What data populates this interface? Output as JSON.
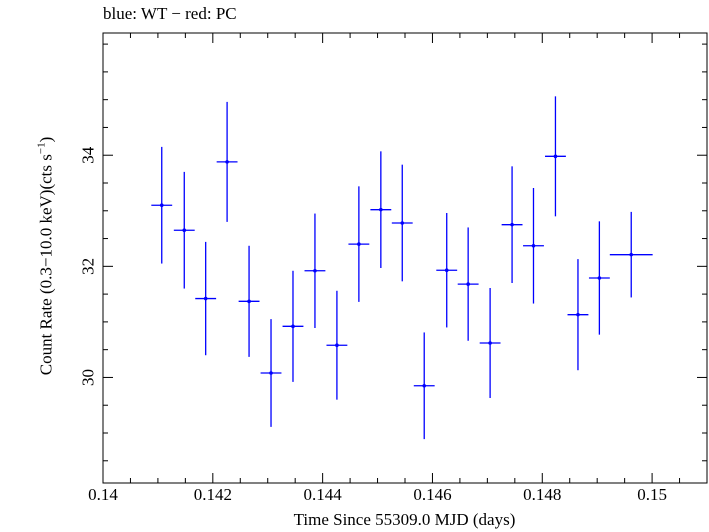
{
  "chart_data": {
    "type": "scatter",
    "title": "blue: WT − red: PC",
    "xlabel": "Time Since 55309.0 MJD (days)",
    "ylabel_main": "Count Rate (0.3−10.0 keV)(cts s",
    "ylabel_sup": "−1",
    "ylabel_end": ")",
    "xlim": [
      0.14,
      0.151
    ],
    "ylim": [
      28.1,
      36.2
    ],
    "x_ticks": [
      0.14,
      0.142,
      0.144,
      0.146,
      0.148,
      0.15
    ],
    "x_tick_labels": [
      "0.14",
      "0.142",
      "0.144",
      "0.146",
      "0.148",
      "0.15"
    ],
    "y_ticks": [
      30,
      32,
      34
    ],
    "y_tick_labels": [
      "30",
      "32",
      "34"
    ],
    "series": [
      {
        "color": "#0000ff",
        "points": [
          {
            "x": 0.14107,
            "xerr": 0.00019,
            "y": 33.1,
            "yerr": 1.05
          },
          {
            "x": 0.14148,
            "xerr": 0.00019,
            "y": 32.65,
            "yerr": 1.05
          },
          {
            "x": 0.14187,
            "xerr": 0.00019,
            "y": 31.42,
            "yerr": 1.02
          },
          {
            "x": 0.14226,
            "xerr": 0.00019,
            "y": 33.88,
            "yerr": 1.08
          },
          {
            "x": 0.14266,
            "xerr": 0.00019,
            "y": 31.37,
            "yerr": 1.0
          },
          {
            "x": 0.14306,
            "xerr": 0.00019,
            "y": 30.08,
            "yerr": 0.97
          },
          {
            "x": 0.14346,
            "xerr": 0.00019,
            "y": 30.92,
            "yerr": 1.0
          },
          {
            "x": 0.14386,
            "xerr": 0.00019,
            "y": 31.92,
            "yerr": 1.03
          },
          {
            "x": 0.14426,
            "xerr": 0.00019,
            "y": 30.58,
            "yerr": 0.98
          },
          {
            "x": 0.14466,
            "xerr": 0.00019,
            "y": 32.4,
            "yerr": 1.04
          },
          {
            "x": 0.14506,
            "xerr": 0.00019,
            "y": 33.02,
            "yerr": 1.05
          },
          {
            "x": 0.14545,
            "xerr": 0.00019,
            "y": 32.78,
            "yerr": 1.05
          },
          {
            "x": 0.14585,
            "xerr": 0.00019,
            "y": 29.85,
            "yerr": 0.96
          },
          {
            "x": 0.14626,
            "xerr": 0.00019,
            "y": 31.93,
            "yerr": 1.03
          },
          {
            "x": 0.14665,
            "xerr": 0.00019,
            "y": 31.68,
            "yerr": 1.02
          },
          {
            "x": 0.14705,
            "xerr": 0.00019,
            "y": 30.62,
            "yerr": 0.99
          },
          {
            "x": 0.14745,
            "xerr": 0.00019,
            "y": 32.75,
            "yerr": 1.05
          },
          {
            "x": 0.14784,
            "xerr": 0.00019,
            "y": 32.37,
            "yerr": 1.04
          },
          {
            "x": 0.14824,
            "xerr": 0.00019,
            "y": 33.98,
            "yerr": 1.08
          },
          {
            "x": 0.14865,
            "xerr": 0.00019,
            "y": 31.13,
            "yerr": 1.0
          },
          {
            "x": 0.14904,
            "xerr": 0.00019,
            "y": 31.79,
            "yerr": 1.02
          },
          {
            "x": 0.14962,
            "xerr": 0.00039,
            "y": 32.21,
            "yerr": 0.77
          }
        ]
      }
    ],
    "grid": false,
    "legend": "none"
  }
}
